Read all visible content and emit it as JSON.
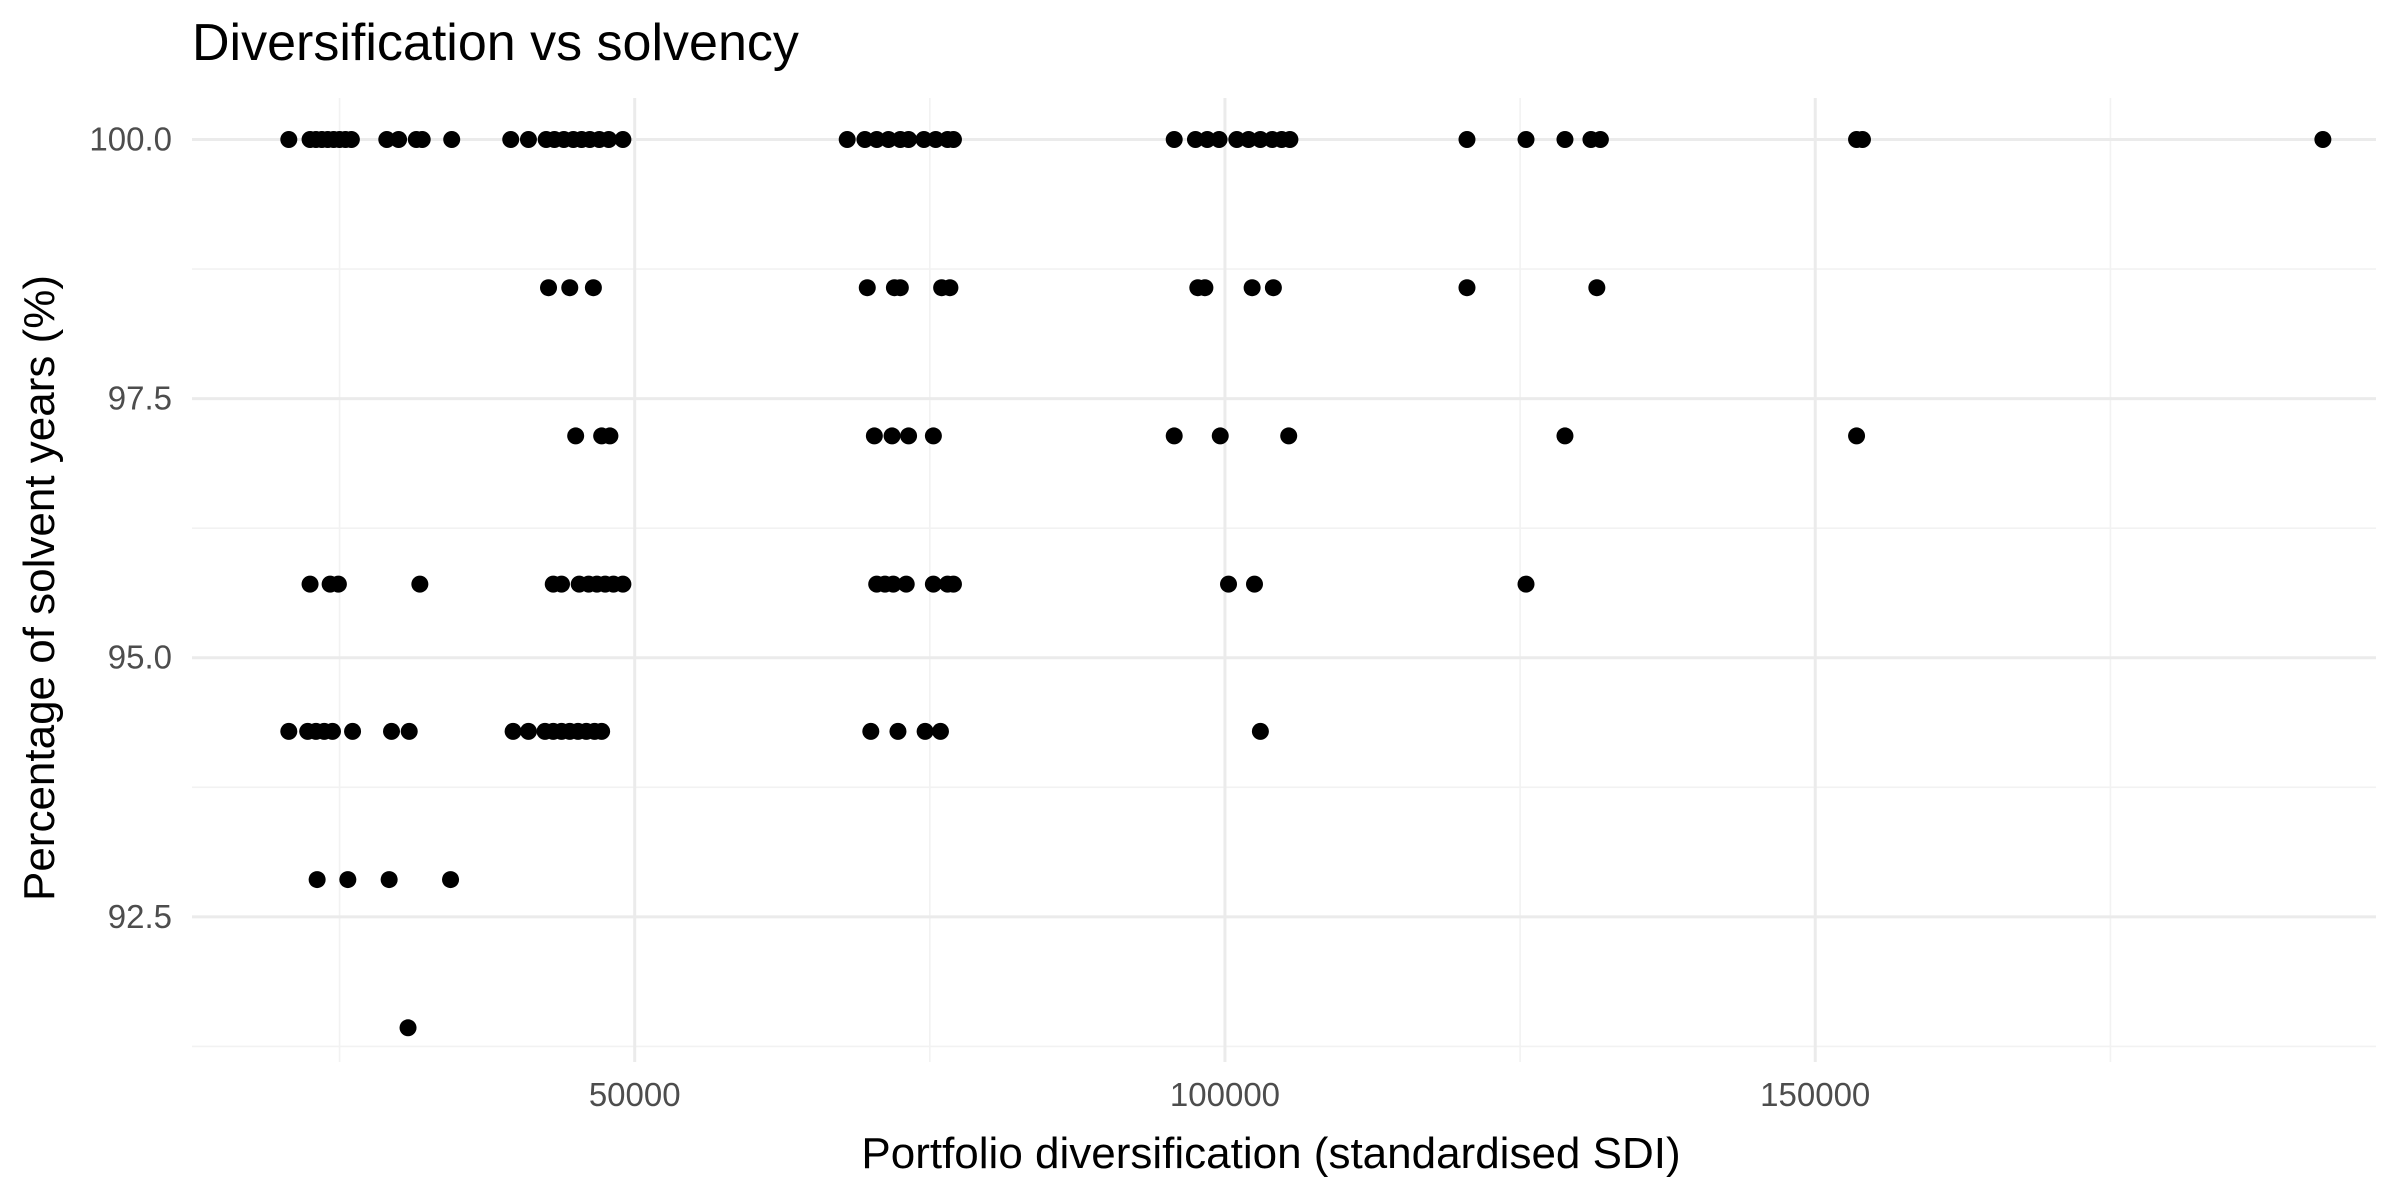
{
  "chart_data": {
    "type": "scatter",
    "title": "Diversification vs solvency",
    "xlabel": "Portfolio diversification (standardised SDI)",
    "ylabel": "Percentage of solvent years (%)",
    "xlim": [
      12500,
      197500
    ],
    "ylim": [
      91.1,
      100.4
    ],
    "x_ticks": [
      50000,
      100000,
      150000
    ],
    "x_tick_labels": [
      "50000",
      "100000",
      "150000"
    ],
    "x_minor_ticks": [
      25000,
      75000,
      125000,
      175000
    ],
    "y_ticks": [
      92.5,
      95.0,
      97.5,
      100.0
    ],
    "y_tick_labels": [
      "92.5",
      "95.0",
      "97.5",
      "100.0"
    ],
    "y_minor_ticks": [
      91.25,
      93.75,
      96.25,
      98.75
    ],
    "grid": true,
    "theme": "minimal",
    "point_color": "#000000",
    "points": [
      {
        "x": 20700,
        "y": 100.0
      },
      {
        "x": 22500,
        "y": 100.0
      },
      {
        "x": 23000,
        "y": 100.0
      },
      {
        "x": 23500,
        "y": 100.0
      },
      {
        "x": 24000,
        "y": 100.0
      },
      {
        "x": 24500,
        "y": 100.0
      },
      {
        "x": 25000,
        "y": 100.0
      },
      {
        "x": 25500,
        "y": 100.0
      },
      {
        "x": 26000,
        "y": 100.0
      },
      {
        "x": 29000,
        "y": 100.0
      },
      {
        "x": 30000,
        "y": 100.0
      },
      {
        "x": 31500,
        "y": 100.0
      },
      {
        "x": 32000,
        "y": 100.0
      },
      {
        "x": 34500,
        "y": 100.0
      },
      {
        "x": 39500,
        "y": 100.0
      },
      {
        "x": 41000,
        "y": 100.0
      },
      {
        "x": 42500,
        "y": 100.0
      },
      {
        "x": 43200,
        "y": 100.0
      },
      {
        "x": 44000,
        "y": 100.0
      },
      {
        "x": 44800,
        "y": 100.0
      },
      {
        "x": 45500,
        "y": 100.0
      },
      {
        "x": 46200,
        "y": 100.0
      },
      {
        "x": 47000,
        "y": 100.0
      },
      {
        "x": 47800,
        "y": 100.0
      },
      {
        "x": 49000,
        "y": 100.0
      },
      {
        "x": 68000,
        "y": 100.0
      },
      {
        "x": 69500,
        "y": 100.0
      },
      {
        "x": 70500,
        "y": 100.0
      },
      {
        "x": 71500,
        "y": 100.0
      },
      {
        "x": 72500,
        "y": 100.0
      },
      {
        "x": 73200,
        "y": 100.0
      },
      {
        "x": 74500,
        "y": 100.0
      },
      {
        "x": 75500,
        "y": 100.0
      },
      {
        "x": 76500,
        "y": 100.0
      },
      {
        "x": 77000,
        "y": 100.0
      },
      {
        "x": 95700,
        "y": 100.0
      },
      {
        "x": 97500,
        "y": 100.0
      },
      {
        "x": 98500,
        "y": 100.0
      },
      {
        "x": 99500,
        "y": 100.0
      },
      {
        "x": 101000,
        "y": 100.0
      },
      {
        "x": 102000,
        "y": 100.0
      },
      {
        "x": 103000,
        "y": 100.0
      },
      {
        "x": 104000,
        "y": 100.0
      },
      {
        "x": 104800,
        "y": 100.0
      },
      {
        "x": 105500,
        "y": 100.0
      },
      {
        "x": 120500,
        "y": 100.0
      },
      {
        "x": 125500,
        "y": 100.0
      },
      {
        "x": 128800,
        "y": 100.0
      },
      {
        "x": 131000,
        "y": 100.0
      },
      {
        "x": 131800,
        "y": 100.0
      },
      {
        "x": 153500,
        "y": 100.0
      },
      {
        "x": 154000,
        "y": 100.0
      },
      {
        "x": 193000,
        "y": 100.0
      },
      {
        "x": 42700,
        "y": 98.57
      },
      {
        "x": 44500,
        "y": 98.57
      },
      {
        "x": 46500,
        "y": 98.57
      },
      {
        "x": 69700,
        "y": 98.57
      },
      {
        "x": 72000,
        "y": 98.57
      },
      {
        "x": 72500,
        "y": 98.57
      },
      {
        "x": 76000,
        "y": 98.57
      },
      {
        "x": 76700,
        "y": 98.57
      },
      {
        "x": 97700,
        "y": 98.57
      },
      {
        "x": 98300,
        "y": 98.57
      },
      {
        "x": 102300,
        "y": 98.57
      },
      {
        "x": 104100,
        "y": 98.57
      },
      {
        "x": 120500,
        "y": 98.57
      },
      {
        "x": 131500,
        "y": 98.57
      },
      {
        "x": 45000,
        "y": 97.14
      },
      {
        "x": 47200,
        "y": 97.14
      },
      {
        "x": 47900,
        "y": 97.14
      },
      {
        "x": 70300,
        "y": 97.14
      },
      {
        "x": 71800,
        "y": 97.14
      },
      {
        "x": 73200,
        "y": 97.14
      },
      {
        "x": 75300,
        "y": 97.14
      },
      {
        "x": 95700,
        "y": 97.14
      },
      {
        "x": 99600,
        "y": 97.14
      },
      {
        "x": 105400,
        "y": 97.14
      },
      {
        "x": 128800,
        "y": 97.14
      },
      {
        "x": 153500,
        "y": 97.14
      },
      {
        "x": 22500,
        "y": 95.71
      },
      {
        "x": 24200,
        "y": 95.71
      },
      {
        "x": 24900,
        "y": 95.71
      },
      {
        "x": 31800,
        "y": 95.71
      },
      {
        "x": 43100,
        "y": 95.71
      },
      {
        "x": 43800,
        "y": 95.71
      },
      {
        "x": 45300,
        "y": 95.71
      },
      {
        "x": 46100,
        "y": 95.71
      },
      {
        "x": 46800,
        "y": 95.71
      },
      {
        "x": 47500,
        "y": 95.71
      },
      {
        "x": 48200,
        "y": 95.71
      },
      {
        "x": 49000,
        "y": 95.71
      },
      {
        "x": 70500,
        "y": 95.71
      },
      {
        "x": 71200,
        "y": 95.71
      },
      {
        "x": 71900,
        "y": 95.71
      },
      {
        "x": 73000,
        "y": 95.71
      },
      {
        "x": 75300,
        "y": 95.71
      },
      {
        "x": 76500,
        "y": 95.71
      },
      {
        "x": 77000,
        "y": 95.71
      },
      {
        "x": 100300,
        "y": 95.71
      },
      {
        "x": 102500,
        "y": 95.71
      },
      {
        "x": 125500,
        "y": 95.71
      },
      {
        "x": 20700,
        "y": 94.29
      },
      {
        "x": 22300,
        "y": 94.29
      },
      {
        "x": 23000,
        "y": 94.29
      },
      {
        "x": 23700,
        "y": 94.29
      },
      {
        "x": 24400,
        "y": 94.29
      },
      {
        "x": 26100,
        "y": 94.29
      },
      {
        "x": 29400,
        "y": 94.29
      },
      {
        "x": 30900,
        "y": 94.29
      },
      {
        "x": 39700,
        "y": 94.29
      },
      {
        "x": 41000,
        "y": 94.29
      },
      {
        "x": 42400,
        "y": 94.29
      },
      {
        "x": 43100,
        "y": 94.29
      },
      {
        "x": 43800,
        "y": 94.29
      },
      {
        "x": 44500,
        "y": 94.29
      },
      {
        "x": 45200,
        "y": 94.29
      },
      {
        "x": 45900,
        "y": 94.29
      },
      {
        "x": 46600,
        "y": 94.29
      },
      {
        "x": 47200,
        "y": 94.29
      },
      {
        "x": 70000,
        "y": 94.29
      },
      {
        "x": 72300,
        "y": 94.29
      },
      {
        "x": 74600,
        "y": 94.29
      },
      {
        "x": 75900,
        "y": 94.29
      },
      {
        "x": 103000,
        "y": 94.29
      },
      {
        "x": 23100,
        "y": 92.86
      },
      {
        "x": 25700,
        "y": 92.86
      },
      {
        "x": 29200,
        "y": 92.86
      },
      {
        "x": 34400,
        "y": 92.86
      },
      {
        "x": 30800,
        "y": 91.43
      }
    ]
  }
}
